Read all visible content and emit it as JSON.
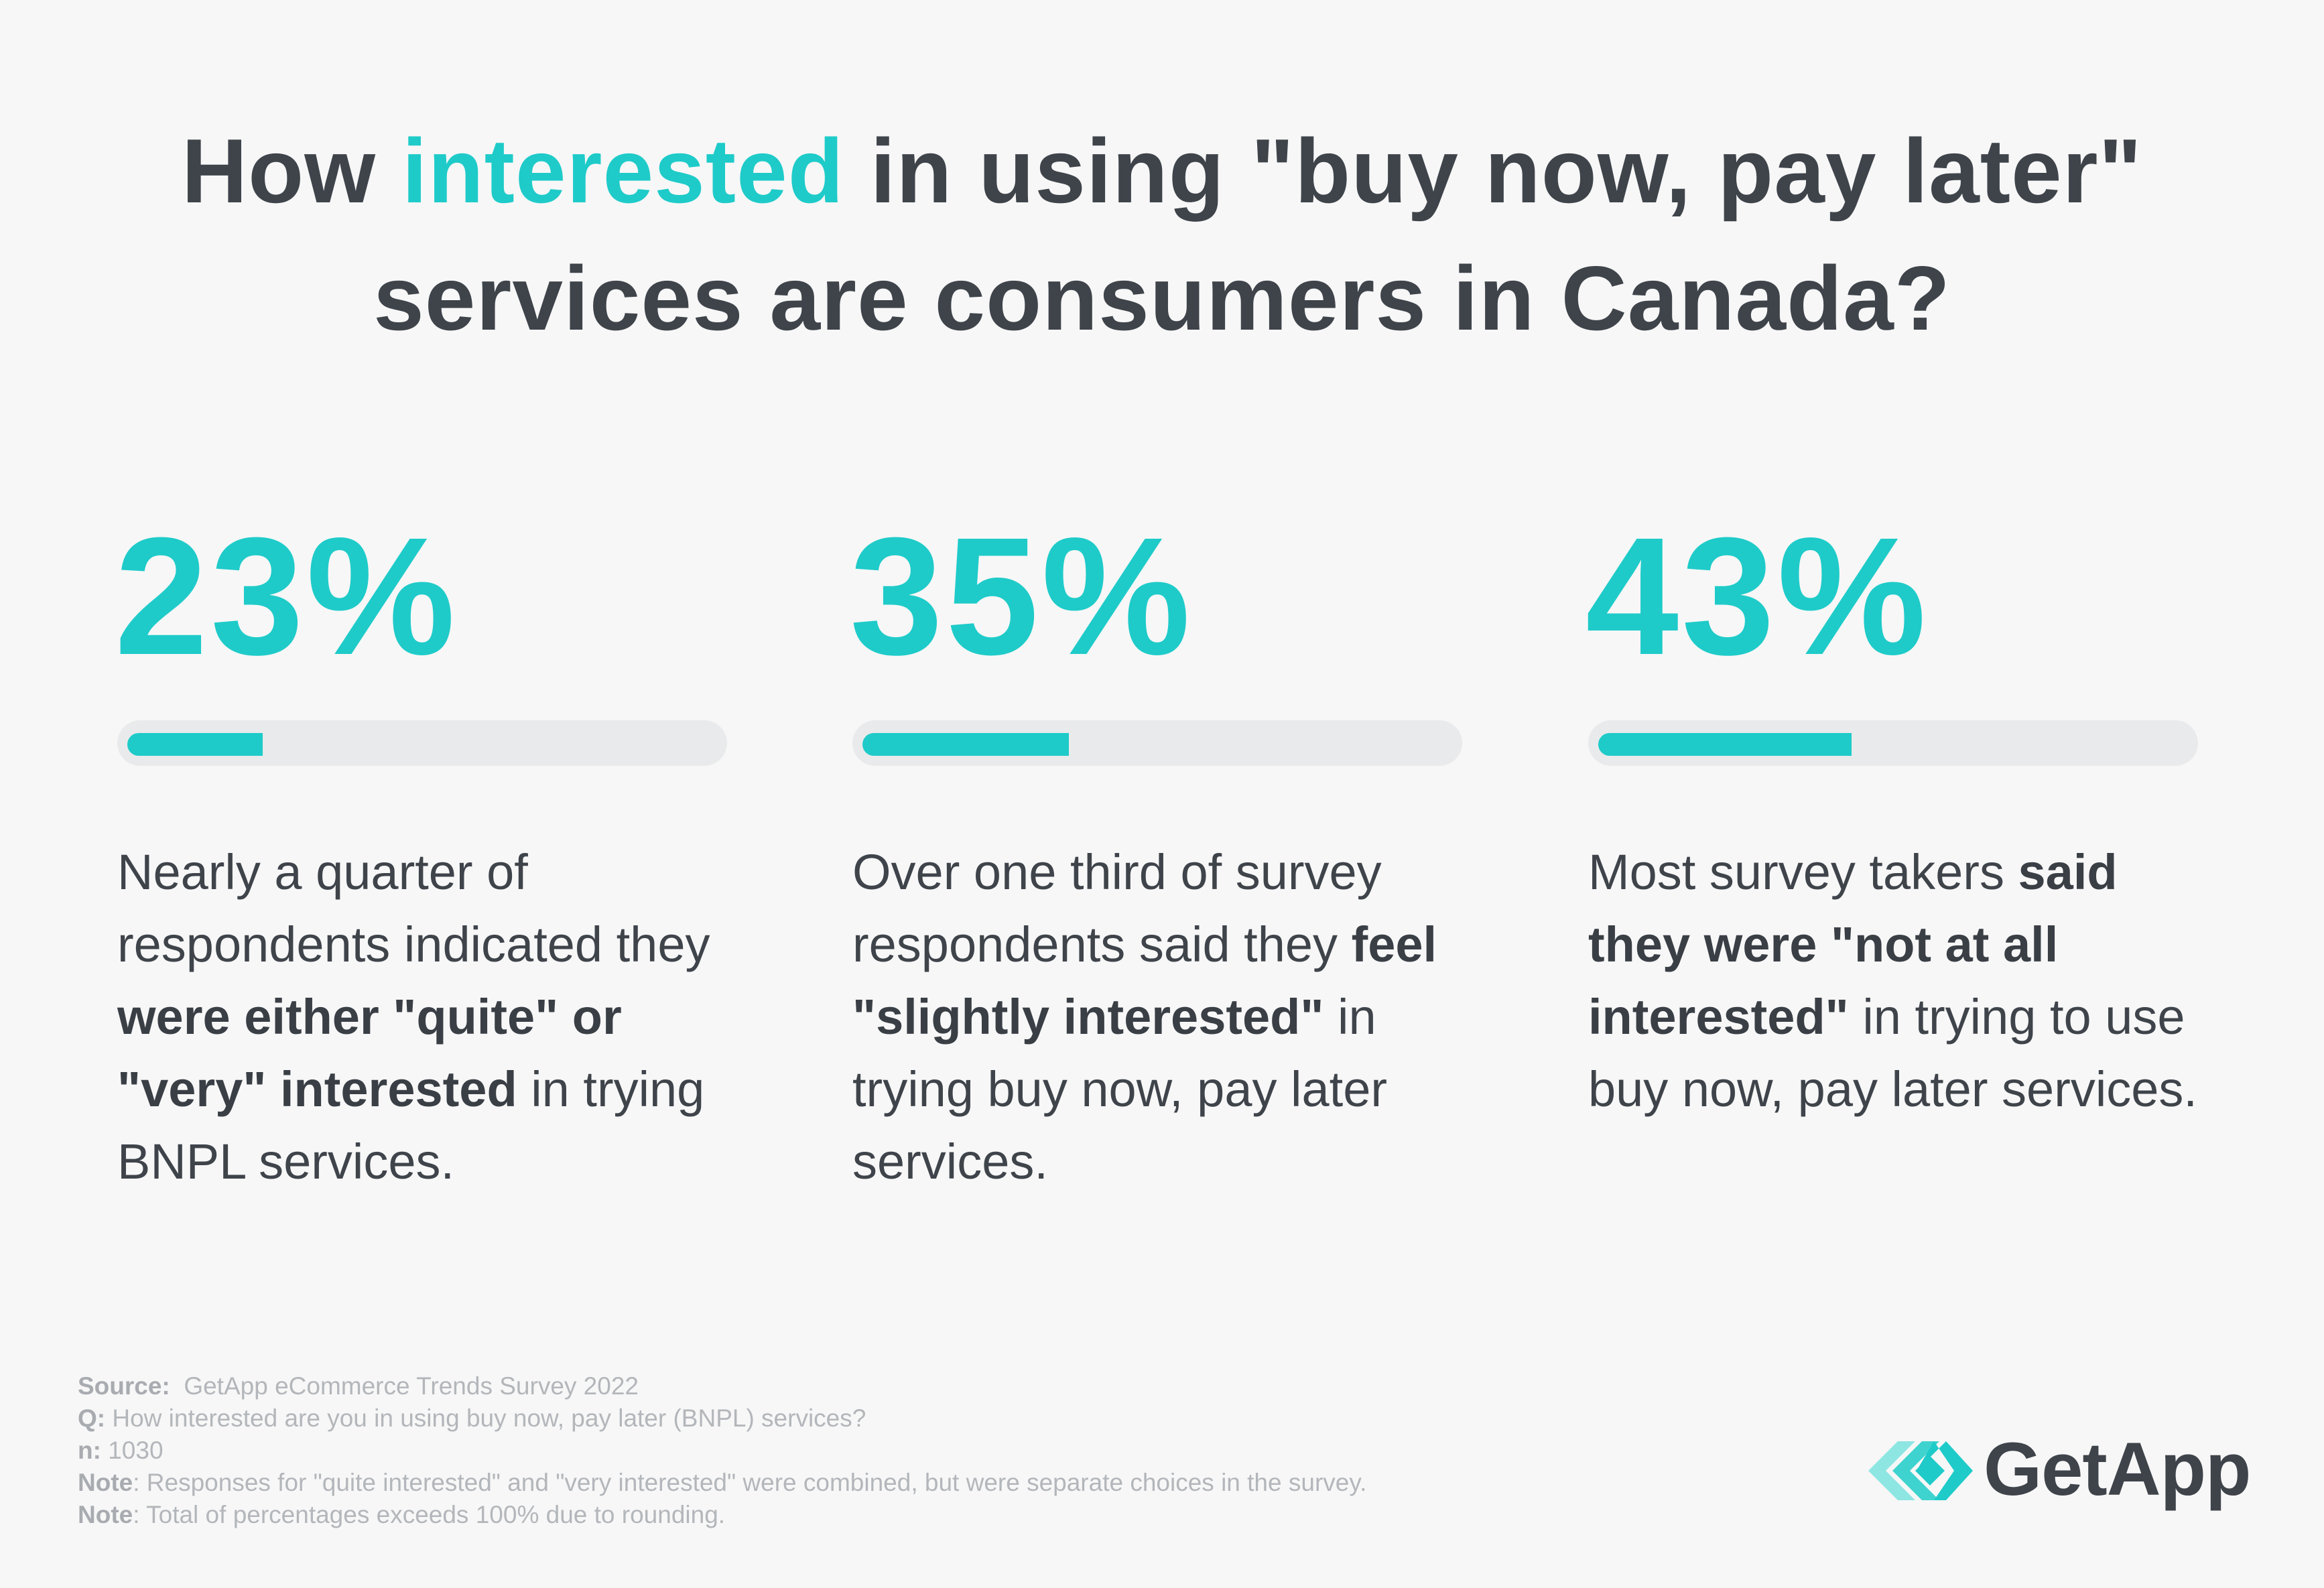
{
  "title": {
    "line1_pre": "How ",
    "line1_highlight": "interested",
    "line1_post": " in using \"buy now, pay later\"",
    "line2": "services are consumers in Canada?"
  },
  "colors": {
    "accent": "#1ecbc9",
    "text": "#3f444b",
    "track": "#e9eaeb",
    "background": "#f7f7f7"
  },
  "chart_data": {
    "type": "bar",
    "categories": [
      "quite or very interested",
      "slightly interested",
      "not at all interested"
    ],
    "values": [
      23,
      35,
      43
    ],
    "value_labels": [
      "23%",
      "35%",
      "43%"
    ],
    "ylim": [
      0,
      100
    ],
    "stats": [
      {
        "value": 23,
        "label": "23%",
        "desc": [
          {
            "t": "Nearly a quarter of respondents indicated they ",
            "b": false
          },
          {
            "t": "were either \"quite\" or \"very\" interested",
            "b": true
          },
          {
            "t": " in trying BNPL services.",
            "b": false
          }
        ]
      },
      {
        "value": 35,
        "label": "35%",
        "desc": [
          {
            "t": "Over one third of survey respondents said they ",
            "b": false
          },
          {
            "t": "feel \"slightly interested\"",
            "b": true
          },
          {
            "t": " in trying buy now, pay later services.",
            "b": false
          }
        ]
      },
      {
        "value": 43,
        "label": "43%",
        "desc": [
          {
            "t": "Most survey takers ",
            "b": false
          },
          {
            "t": "said they were \"not at all interested\"",
            "b": true
          },
          {
            "t": " in trying to use buy now, pay later services.",
            "b": false
          }
        ]
      }
    ]
  },
  "footer": {
    "source_label": "Source:",
    "source_text": "  GetApp eCommerce Trends Survey 2022",
    "q_label": "Q:",
    "q_text": " How interested are you in using buy now, pay later (BNPL) services?",
    "n_label": "n:",
    "n_text": " 1030",
    "note1_label": "Note",
    "note1_text": ": Responses for \"quite interested\" and \"very interested\" were combined, but were separate choices in the survey.",
    "note2_label": "Note",
    "note2_text": ": Total of percentages exceeds 100% due to rounding."
  },
  "logo": {
    "text": "GetApp",
    "icon": "getapp-chevrons-icon"
  }
}
